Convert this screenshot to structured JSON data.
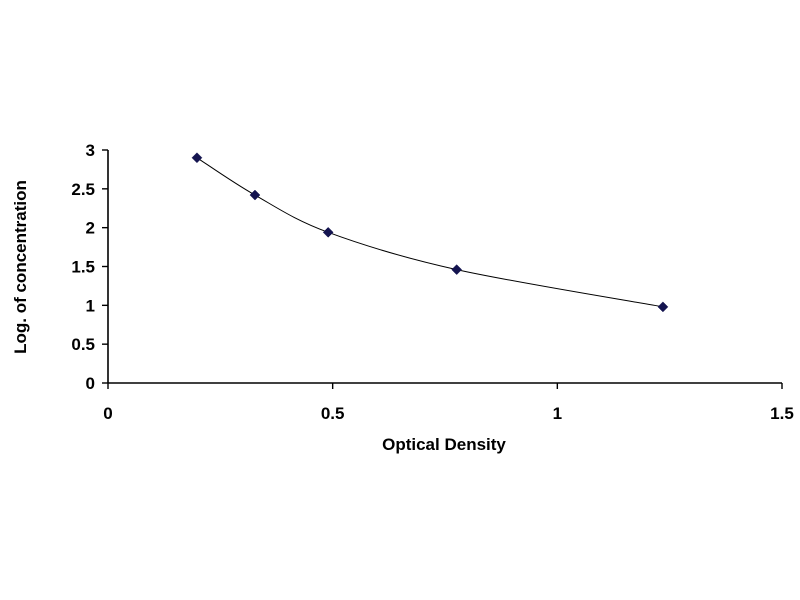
{
  "chart_data": {
    "type": "scatter",
    "title": "",
    "xlabel": "Optical Density",
    "ylabel": "Log. of concentration",
    "xlim": [
      0,
      1.5
    ],
    "ylim": [
      0,
      3
    ],
    "x_ticks": [
      0,
      0.5,
      1,
      1.5
    ],
    "x_tick_labels": [
      "0",
      "0.5",
      "1",
      "1.5"
    ],
    "y_ticks": [
      0,
      0.5,
      1,
      1.5,
      2,
      2.5,
      3
    ],
    "y_tick_labels": [
      "0",
      "0.5",
      "1",
      "1.5",
      "2",
      "2.5",
      "3"
    ],
    "grid": false,
    "legend": "none",
    "line_style": "smooth",
    "colors": {
      "marker": "#141450",
      "line": "#000000",
      "axis": "#000000"
    },
    "series": [
      {
        "x": [
          0.198,
          0.327,
          0.49,
          0.776,
          1.235
        ],
        "y": [
          2.9,
          2.42,
          1.94,
          1.46,
          0.98
        ]
      }
    ]
  }
}
